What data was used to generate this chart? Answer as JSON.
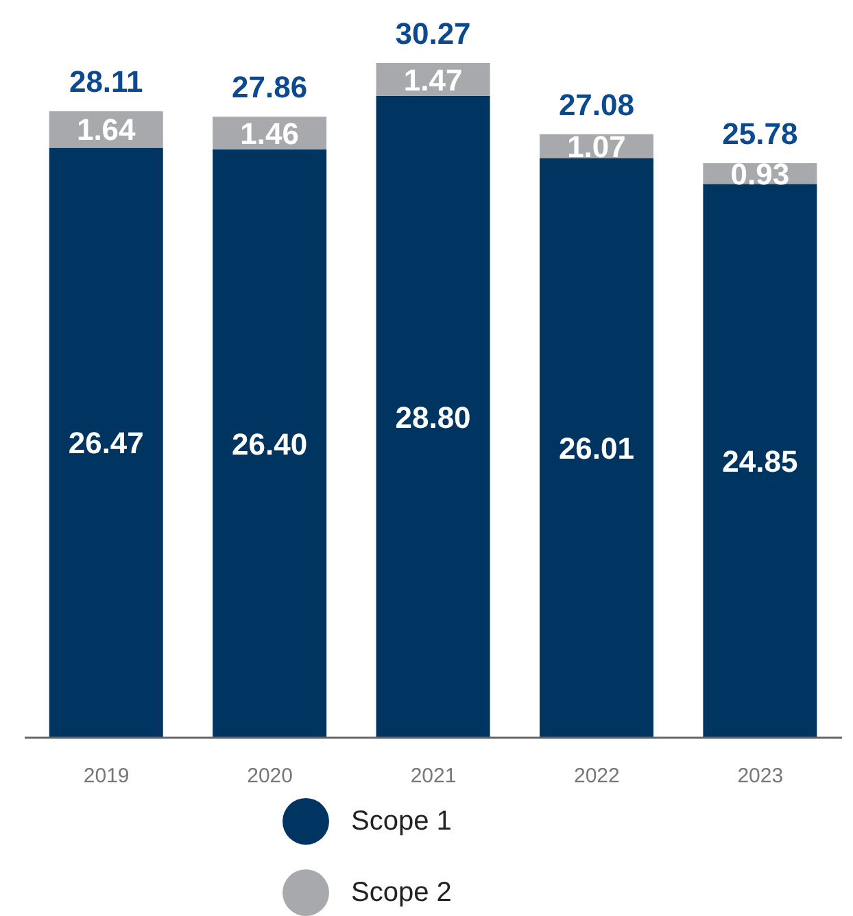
{
  "chart_data": {
    "type": "bar",
    "stacked": true,
    "categories": [
      "2019",
      "2020",
      "2021",
      "2022",
      "2023"
    ],
    "series": [
      {
        "name": "Scope 1",
        "color": "#003461",
        "values": [
          26.47,
          26.4,
          28.8,
          26.01,
          24.85
        ],
        "value_labels": [
          "26.47",
          "26.40",
          "28.80",
          "26.01",
          "24.85"
        ]
      },
      {
        "name": "Scope 2",
        "color": "#a7a9ac",
        "values": [
          1.64,
          1.46,
          1.47,
          1.07,
          0.93
        ],
        "value_labels": [
          "1.64",
          "1.46",
          "1.47",
          "1.07",
          "0.93"
        ]
      }
    ],
    "totals": [
      "28.11",
      "27.86",
      "30.27",
      "27.08",
      "25.78"
    ],
    "legend": "bottom"
  }
}
